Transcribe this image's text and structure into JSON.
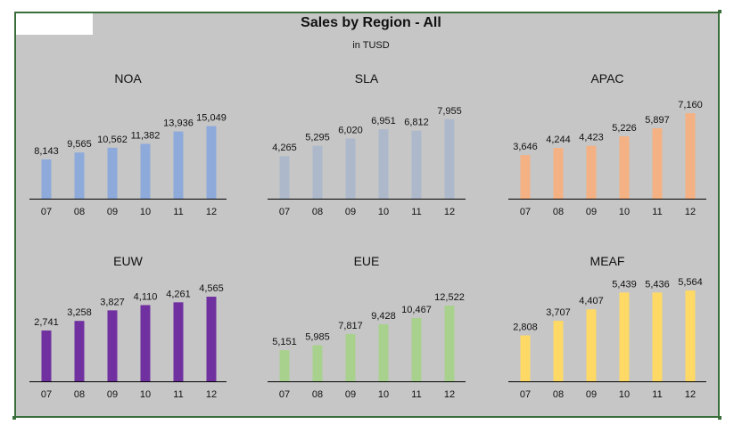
{
  "title": "Sales by Region - All",
  "subtitle": "in TUSD",
  "chart_data": [
    {
      "type": "bar",
      "title": "NOA",
      "categories": [
        "07",
        "08",
        "09",
        "10",
        "11",
        "12"
      ],
      "values": [
        8143,
        9565,
        10562,
        11382,
        13936,
        15049
      ],
      "labels": [
        "8,143",
        "9,565",
        "10,562",
        "11,382",
        "13,936",
        "15,049"
      ],
      "color": "#8eaadb"
    },
    {
      "type": "bar",
      "title": "SLA",
      "categories": [
        "07",
        "08",
        "09",
        "10",
        "11",
        "12"
      ],
      "values": [
        4265,
        5295,
        6020,
        6951,
        6812,
        7955
      ],
      "labels": [
        "4,265",
        "5,295",
        "6,020",
        "6,951",
        "6,812",
        "7,955"
      ],
      "color": "#adb9ca"
    },
    {
      "type": "bar",
      "title": "APAC",
      "categories": [
        "07",
        "08",
        "09",
        "10",
        "11",
        "12"
      ],
      "values": [
        3646,
        4244,
        4423,
        5226,
        5897,
        7160
      ],
      "labels": [
        "3,646",
        "4,244",
        "4,423",
        "5,226",
        "5,897",
        "7,160"
      ],
      "color": "#f4b183"
    },
    {
      "type": "bar",
      "title": "EUW",
      "categories": [
        "07",
        "08",
        "09",
        "10",
        "11",
        "12"
      ],
      "values": [
        2741,
        3258,
        3827,
        4110,
        4261,
        4565
      ],
      "labels": [
        "2,741",
        "3,258",
        "3,827",
        "4,110",
        "4,261",
        "4,565"
      ],
      "color": "#7030a0"
    },
    {
      "type": "bar",
      "title": "EUE",
      "categories": [
        "07",
        "08",
        "09",
        "10",
        "11",
        "12"
      ],
      "values": [
        5151,
        5985,
        7817,
        9428,
        10467,
        12522
      ],
      "labels": [
        "5,151",
        "5,985",
        "7,817",
        "9,428",
        "10,467",
        "12,522"
      ],
      "color": "#a9d18e"
    },
    {
      "type": "bar",
      "title": "MEAF",
      "categories": [
        "07",
        "08",
        "09",
        "10",
        "11",
        "12"
      ],
      "values": [
        2808,
        3707,
        4407,
        5439,
        5436,
        5564
      ],
      "labels": [
        "2,808",
        "3,707",
        "4,407",
        "5,439",
        "5,436",
        "5,564"
      ],
      "color": "#ffd966"
    }
  ]
}
